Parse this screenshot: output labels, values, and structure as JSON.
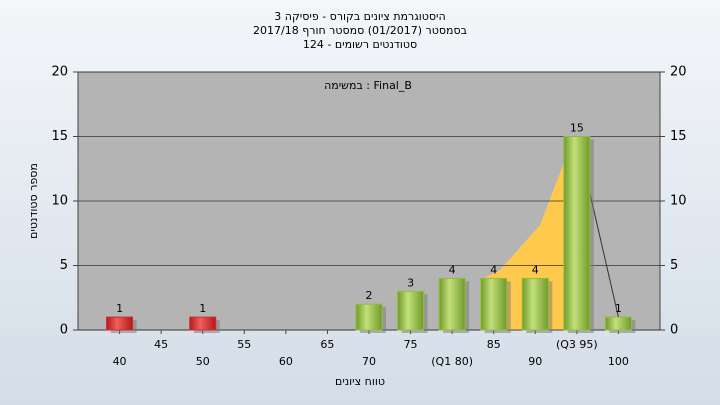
{
  "chart_data": {
    "type": "bar",
    "title": "היסטוגרמת ציונים בקורס - פיסיקה 3",
    "subtitle": "בסמסטר (01/2017) סמסטר חורף 2017/18",
    "subtitle2": "סטודנטים רשומים - 124",
    "annotation": "במשימה : Final_B",
    "x_label": "טווח ציונים",
    "y_label": "מספר סטודנטים",
    "categories": [
      "40",
      "45",
      "50",
      "55",
      "60",
      "65",
      "70",
      "75",
      "(Q1 80)",
      "85",
      "90",
      "(Q3 95)",
      "100"
    ],
    "values": [
      1,
      0,
      1,
      0,
      0,
      0,
      2,
      3,
      4,
      4,
      4,
      15,
      1
    ],
    "colors": [
      "#d42a2a",
      "#8fbf3a",
      "#d42a2a",
      "#8fbf3a",
      "#8fbf3a",
      "#8fbf3a",
      "#8fbf3a",
      "#8fbf3a",
      "#8fbf3a",
      "#8fbf3a",
      "#8fbf3a",
      "#8fbf3a",
      "#8fbf3a"
    ],
    "ylim": [
      0,
      20
    ],
    "yticks": [
      0,
      5,
      10,
      15,
      20
    ],
    "grid": true
  }
}
